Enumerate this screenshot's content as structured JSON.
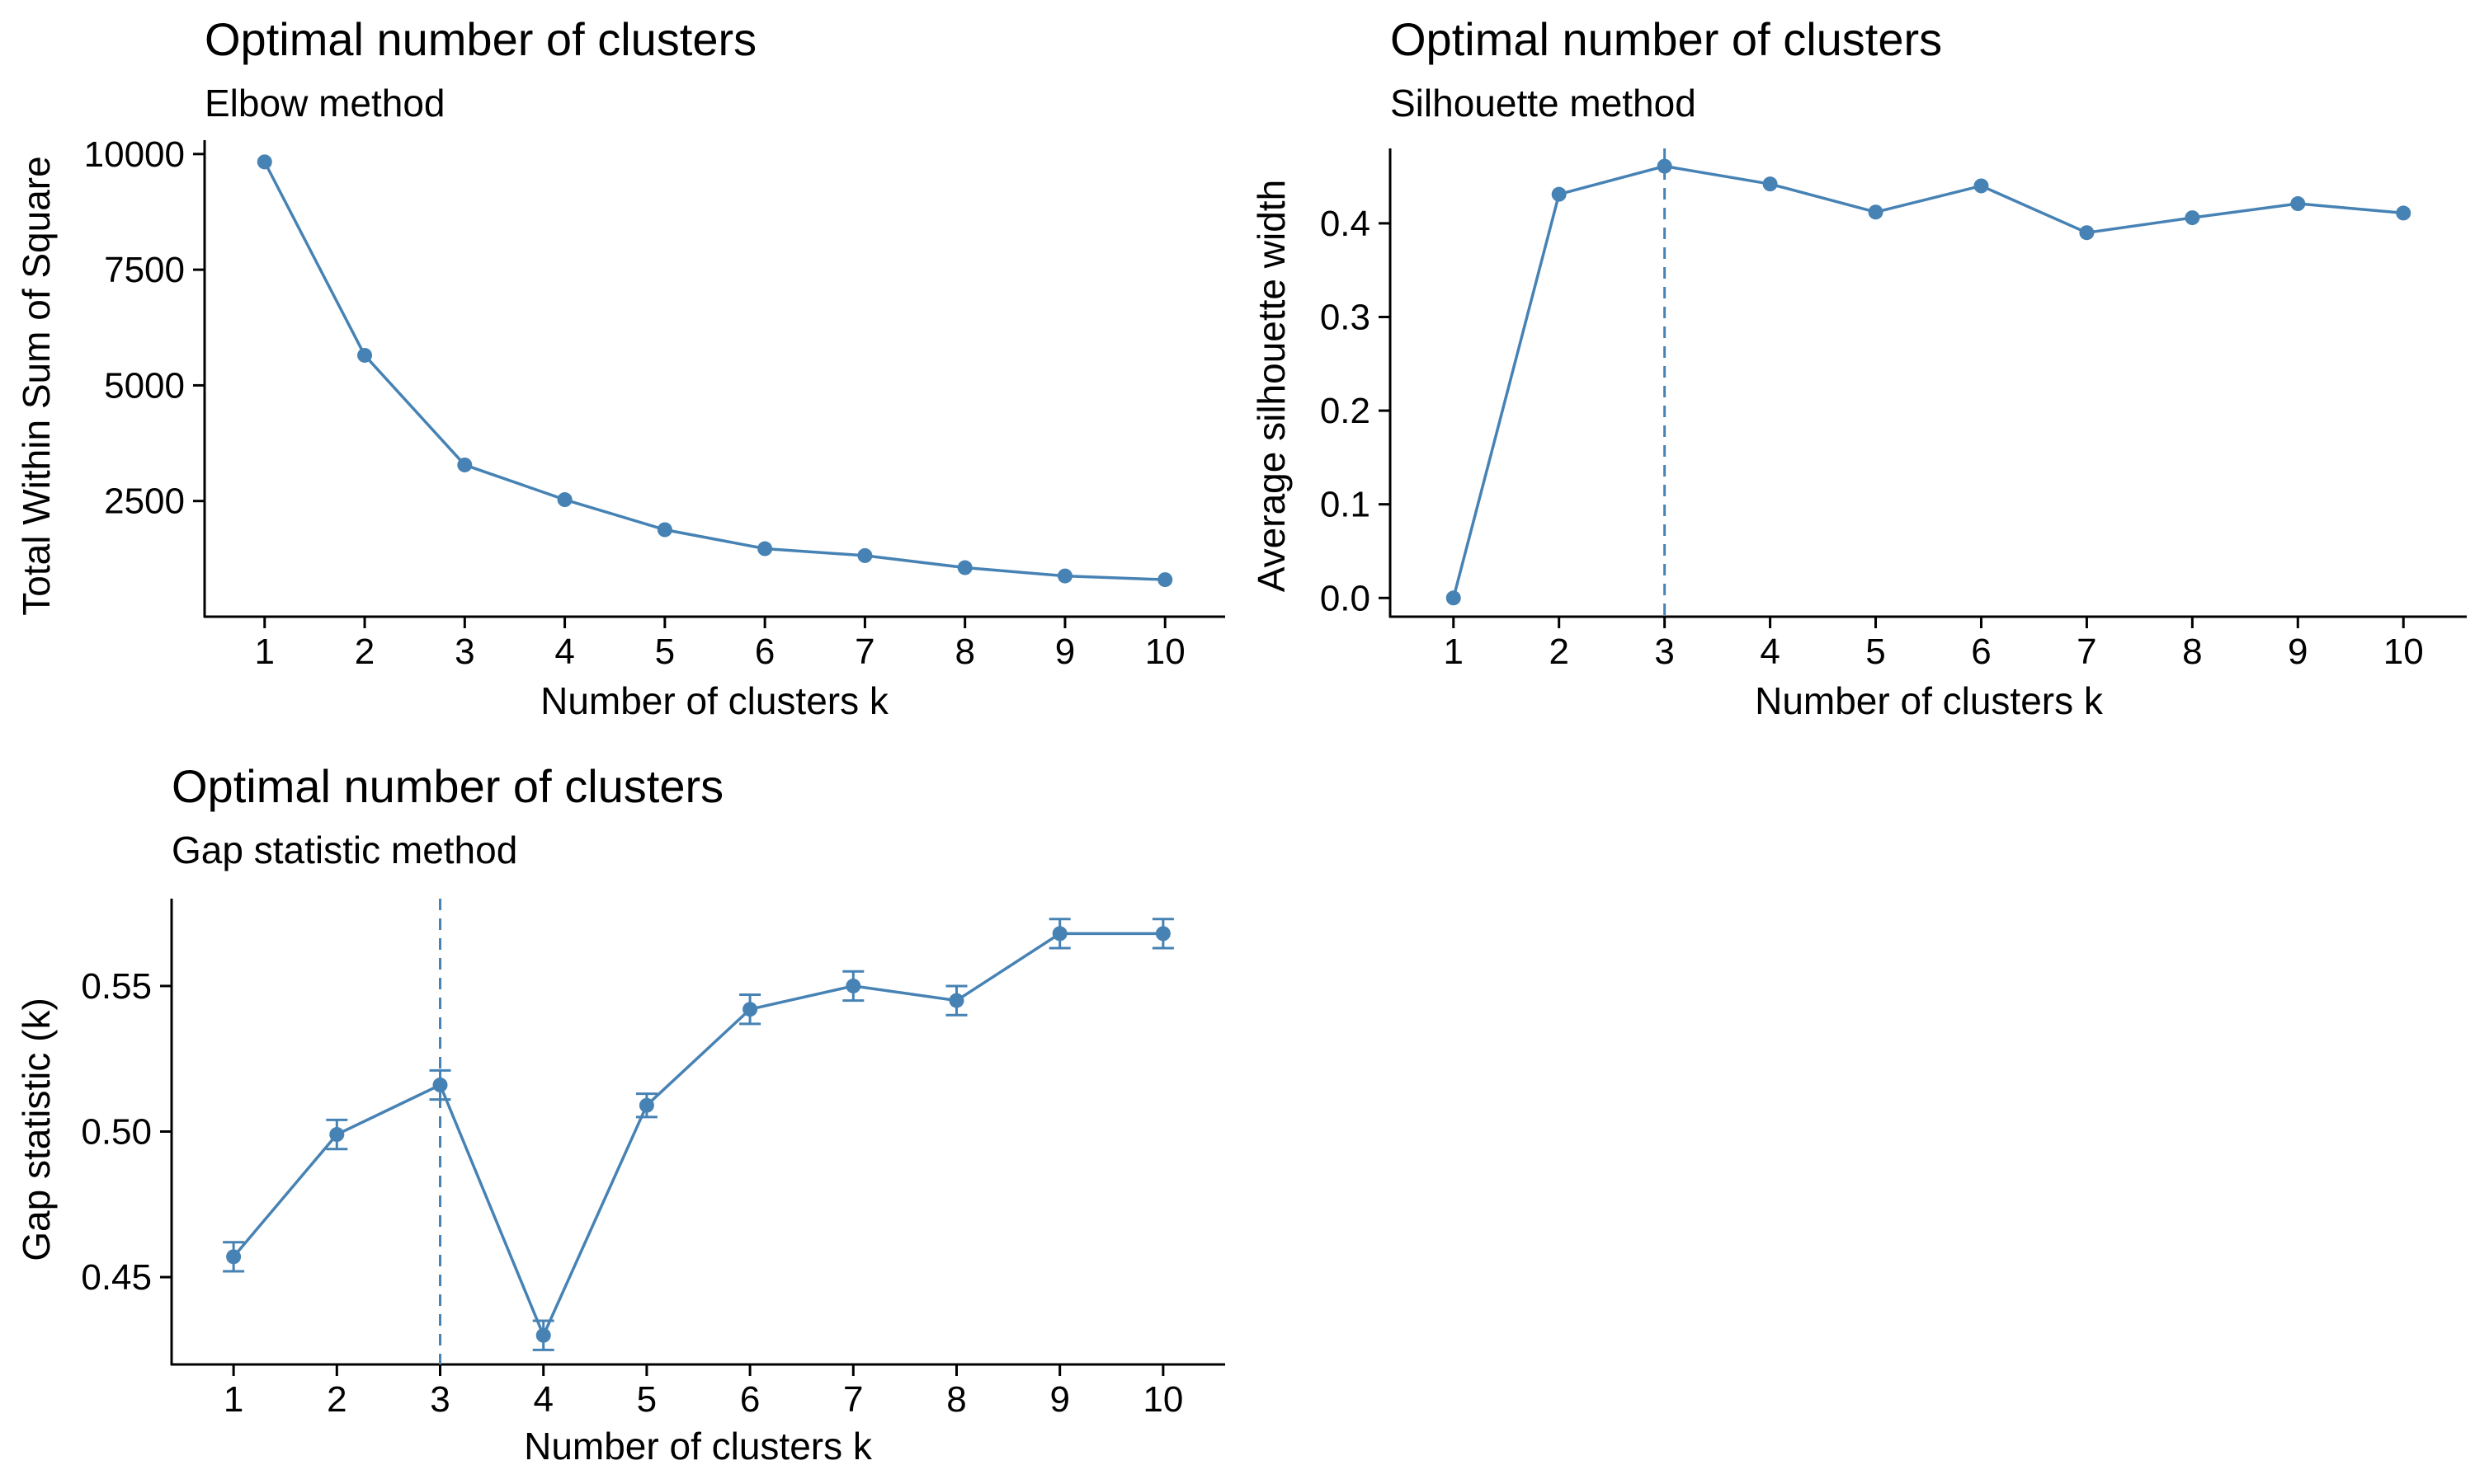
{
  "theme": {
    "series_color": "#4682B4",
    "axis_color": "#000000",
    "background": "#FFFFFF"
  },
  "chart_data": [
    {
      "id": "elbow",
      "type": "line",
      "title": "Optimal number of clusters",
      "subtitle": "Elbow method",
      "xlabel": "Number of clusters k",
      "ylabel": "Total Within Sum of Square",
      "x": [
        1,
        2,
        3,
        4,
        5,
        6,
        7,
        8,
        9,
        10
      ],
      "y": [
        9830,
        5650,
        3280,
        2530,
        1880,
        1470,
        1320,
        1060,
        880,
        800
      ],
      "xticks": [
        "1",
        "2",
        "3",
        "4",
        "5",
        "6",
        "7",
        "8",
        "9",
        "10"
      ],
      "yticks": [
        2500,
        5000,
        7500,
        10000
      ],
      "ytick_labels": [
        "2500",
        "5000",
        "7500",
        "10000"
      ],
      "xlim": [
        0.4,
        10.6
      ],
      "ylim": [
        0,
        10300
      ],
      "grid": false
    },
    {
      "id": "silhouette",
      "type": "line",
      "title": "Optimal number of clusters",
      "subtitle": "Silhouette method",
      "xlabel": "Number of clusters k",
      "ylabel": "Average silhouette width",
      "x": [
        1,
        2,
        3,
        4,
        5,
        6,
        7,
        8,
        9,
        10
      ],
      "y": [
        0.0,
        0.431,
        0.461,
        0.442,
        0.412,
        0.44,
        0.39,
        0.406,
        0.421,
        0.411
      ],
      "xticks": [
        "1",
        "2",
        "3",
        "4",
        "5",
        "6",
        "7",
        "8",
        "9",
        "10"
      ],
      "yticks": [
        0.0,
        0.1,
        0.2,
        0.3,
        0.4
      ],
      "ytick_labels": [
        "0.0",
        "0.1",
        "0.2",
        "0.3",
        "0.4"
      ],
      "xlim": [
        0.4,
        10.6
      ],
      "ylim": [
        -0.02,
        0.48
      ],
      "vline_x": 3,
      "grid": false
    },
    {
      "id": "gap",
      "type": "line",
      "title": "Optimal number of clusters",
      "subtitle": "Gap statistic method",
      "xlabel": "Number of clusters k",
      "ylabel": "Gap statistic (k)",
      "x": [
        1,
        2,
        3,
        4,
        5,
        6,
        7,
        8,
        9,
        10
      ],
      "y": [
        0.457,
        0.499,
        0.516,
        0.43,
        0.509,
        0.542,
        0.55,
        0.545,
        0.568,
        0.568
      ],
      "error": [
        0.005,
        0.005,
        0.005,
        0.005,
        0.004,
        0.005,
        0.005,
        0.005,
        0.005,
        0.005
      ],
      "xticks": [
        "1",
        "2",
        "3",
        "4",
        "5",
        "6",
        "7",
        "8",
        "9",
        "10"
      ],
      "yticks": [
        0.45,
        0.5,
        0.55
      ],
      "ytick_labels": [
        "0.45",
        "0.50",
        "0.55"
      ],
      "xlim": [
        0.4,
        10.6
      ],
      "ylim": [
        0.42,
        0.58
      ],
      "vline_x": 3,
      "grid": false
    }
  ]
}
